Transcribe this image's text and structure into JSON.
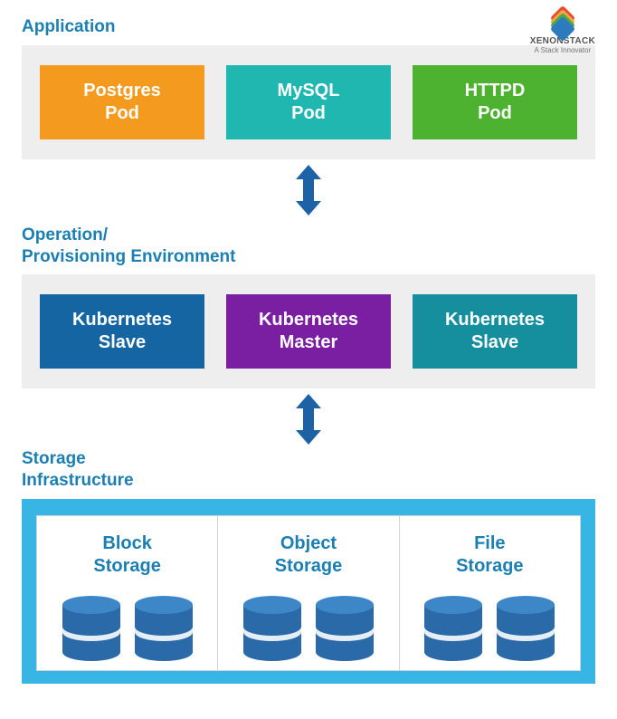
{
  "logo": {
    "brand": "XENONSTACK",
    "tag": "A Stack Innovator",
    "layer_colors": [
      "#e94b35",
      "#f2a63b",
      "#4aa74a",
      "#2d7bbf"
    ]
  },
  "accent_title_color": "#1b7fb3",
  "arrow_color": "#1e62a6",
  "application": {
    "title": "Application",
    "panel_bg": "#eeeeee",
    "pods": [
      {
        "label": "Postgres\nPod",
        "bg": "#f39a1f"
      },
      {
        "label": "MySQL\nPod",
        "bg": "#1fb7b0"
      },
      {
        "label": "HTTPD\nPod",
        "bg": "#4cb22f"
      }
    ]
  },
  "operation": {
    "title": "Operation/\nProvisioning Environment",
    "panel_bg": "#eeeeee",
    "nodes": [
      {
        "label": "Kubernetes\nSlave",
        "bg": "#1565a3"
      },
      {
        "label": "Kubernetes\nMaster",
        "bg": "#7b1fa2"
      },
      {
        "label": "Kubernetes\nSlave",
        "bg": "#158f9e"
      }
    ]
  },
  "storage": {
    "title": "Storage\nInfrastructure",
    "outer_bg": "#37b6e6",
    "cell_bg": "#ffffff",
    "cell_border": "#cfd4d7",
    "label_color": "#1b7fb3",
    "db_colors": {
      "top": "#3d87c9",
      "mid": "#2b6aa8",
      "band": "#e6eef5"
    },
    "cells": [
      {
        "label": "Block\nStorage"
      },
      {
        "label": "Object\nStorage"
      },
      {
        "label": "File\nStorage"
      }
    ]
  }
}
